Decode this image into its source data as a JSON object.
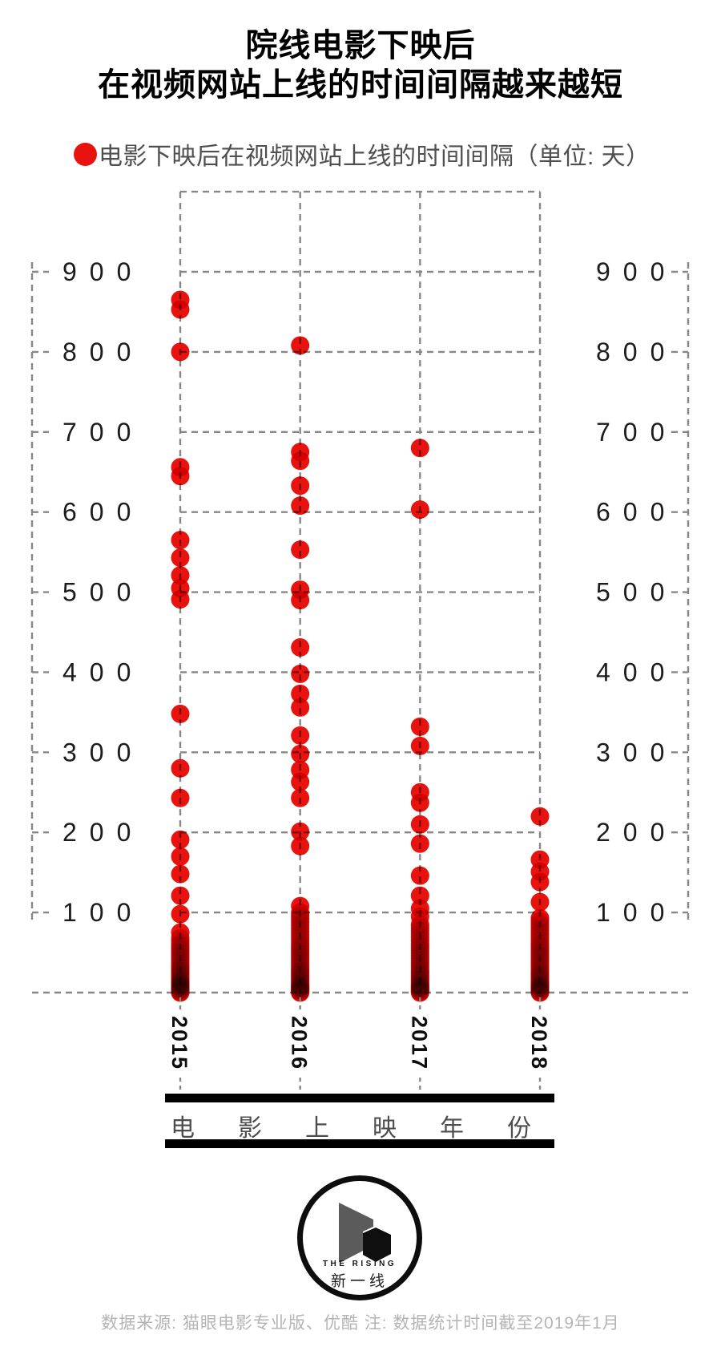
{
  "title": {
    "line1": "院线电影下映后",
    "line2": "在视频网站上线的时间间隔越来越短"
  },
  "legend": {
    "marker_color": "#e8120e",
    "label": "电影下映后在视频网站上线的时间间隔（单位: 天）"
  },
  "chart_data": {
    "type": "scatter",
    "title": "院线电影下映后在视频网站上线的时间间隔越来越短",
    "xlabel": "电影上映年份",
    "unit": "天",
    "ylim": [
      0,
      1000
    ],
    "yticks": [
      900,
      800,
      700,
      600,
      500,
      400,
      300,
      200,
      100
    ],
    "yticks_both_sides": true,
    "grid": true,
    "dot_color": "#e8120e",
    "categories": [
      "2015",
      "2016",
      "2017",
      "2018"
    ],
    "series": [
      {
        "name": "2015",
        "values": [
          865,
          853,
          800,
          656,
          645,
          565,
          543,
          521,
          505,
          491,
          348,
          280,
          243,
          191,
          170,
          148,
          121,
          98,
          75,
          68,
          64,
          60,
          57,
          54,
          51,
          48,
          45,
          42,
          39,
          36,
          33,
          31,
          29,
          27,
          25,
          23,
          21,
          19,
          17,
          15,
          14,
          13,
          12,
          11,
          10,
          9,
          8,
          7,
          6,
          5,
          4,
          3,
          2,
          1,
          0
        ]
      },
      {
        "name": "2016",
        "values": [
          808,
          675,
          664,
          633,
          608,
          553,
          503,
          490,
          431,
          398,
          373,
          356,
          321,
          298,
          278,
          263,
          243,
          201,
          183,
          108,
          100,
          96,
          92,
          88,
          84,
          80,
          76,
          72,
          68,
          64,
          60,
          57,
          54,
          51,
          48,
          45,
          42,
          39,
          36,
          33,
          30,
          28,
          26,
          24,
          22,
          20,
          18,
          16,
          14,
          12,
          10,
          9,
          8,
          7,
          6,
          5,
          4,
          3,
          2,
          1,
          0
        ]
      },
      {
        "name": "2017",
        "values": [
          680,
          603,
          332,
          308,
          250,
          237,
          210,
          186,
          146,
          121,
          105,
          95,
          85,
          81,
          77,
          73,
          69,
          65,
          61,
          58,
          55,
          52,
          49,
          46,
          43,
          40,
          37,
          34,
          31,
          28,
          26,
          24,
          22,
          20,
          18,
          16,
          14,
          12,
          10,
          9,
          8,
          7,
          6,
          5,
          4,
          3,
          2,
          1,
          0
        ]
      },
      {
        "name": "2018",
        "values": [
          220,
          166,
          151,
          138,
          113,
          93,
          89,
          85,
          81,
          77,
          73,
          69,
          65,
          61,
          58,
          55,
          52,
          49,
          46,
          43,
          40,
          37,
          34,
          31,
          28,
          26,
          24,
          22,
          20,
          18,
          16,
          14,
          12,
          10,
          9,
          8,
          7,
          6,
          5,
          4,
          3,
          2,
          1,
          0
        ]
      }
    ]
  },
  "x_axis": {
    "title_chars": [
      "电",
      "影",
      "上",
      "映",
      "年",
      "份"
    ]
  },
  "logo": {
    "top_text": "THE RISING",
    "bottom_text": "新一线"
  },
  "footer": {
    "note": "数据来源: 猫眼电影专业版、优酷  注: 数据统计时间截至2019年1月"
  }
}
